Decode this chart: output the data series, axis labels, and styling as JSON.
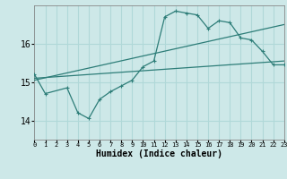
{
  "bg_color": "#cde8e8",
  "grid_color": "#b0d8d8",
  "line_color": "#2d7d78",
  "xlabel": "Humidex (Indice chaleur)",
  "xlim": [
    0,
    23
  ],
  "ylim": [
    13.5,
    17.0
  ],
  "yticks": [
    14,
    15,
    16
  ],
  "xticks": [
    0,
    1,
    2,
    3,
    4,
    5,
    6,
    7,
    8,
    9,
    10,
    11,
    12,
    13,
    14,
    15,
    16,
    17,
    18,
    19,
    20,
    21,
    22,
    23
  ],
  "line1_x": [
    0,
    1,
    3,
    4,
    5,
    6,
    7,
    8,
    9,
    10,
    11,
    12,
    13,
    14,
    15,
    16,
    17,
    18,
    19,
    20,
    21,
    22,
    23
  ],
  "line1_y": [
    15.2,
    14.7,
    14.85,
    14.2,
    14.05,
    14.55,
    14.75,
    14.9,
    15.05,
    15.4,
    15.55,
    16.7,
    16.85,
    16.8,
    16.75,
    16.4,
    16.6,
    16.55,
    16.15,
    16.1,
    15.8,
    15.45,
    15.45
  ],
  "line2_x": [
    0,
    23
  ],
  "line2_y": [
    15.1,
    15.55
  ],
  "line3_x": [
    0,
    23
  ],
  "line3_y": [
    15.05,
    16.5
  ],
  "fontsize_xlabel": 7,
  "fontsize_ytick": 7,
  "fontsize_xtick": 5
}
